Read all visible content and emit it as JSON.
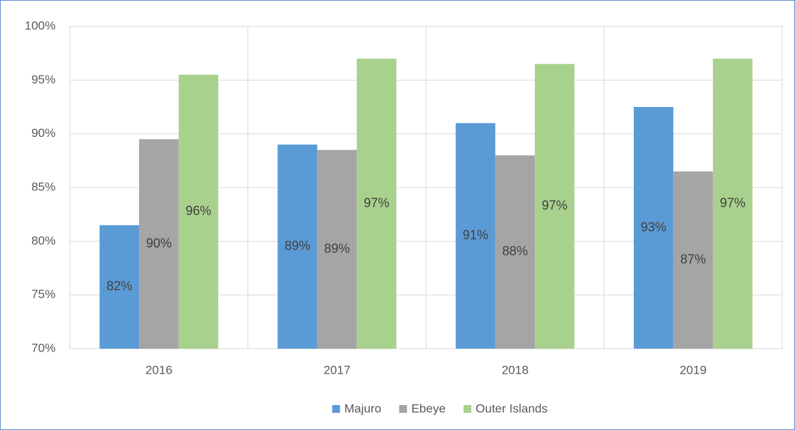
{
  "chart_data": {
    "type": "bar",
    "categories": [
      "2016",
      "2017",
      "2018",
      "2019"
    ],
    "series": [
      {
        "name": "Majuro",
        "color": "#5b9bd5",
        "values": [
          81.5,
          89,
          91,
          92.5
        ],
        "value_labels": [
          "82%",
          "89%",
          "91%",
          "93%"
        ]
      },
      {
        "name": "Ebeye",
        "color": "#a5a5a5",
        "values": [
          89.5,
          88.5,
          88,
          86.5
        ],
        "value_labels": [
          "90%",
          "89%",
          "88%",
          "87%"
        ]
      },
      {
        "name": "Outer Islands",
        "color": "#a9d18e",
        "values": [
          95.5,
          97,
          96.5,
          97
        ],
        "value_labels": [
          "96%",
          "97%",
          "97%",
          "97%"
        ]
      }
    ],
    "ylim": [
      70,
      100
    ],
    "yticks": [
      {
        "value": 70,
        "label": "70%"
      },
      {
        "value": 75,
        "label": "75%"
      },
      {
        "value": 80,
        "label": "80%"
      },
      {
        "value": 85,
        "label": "85%"
      },
      {
        "value": 90,
        "label": "90%"
      },
      {
        "value": 95,
        "label": "95%"
      },
      {
        "value": 100,
        "label": "100%"
      }
    ],
    "grid": true,
    "legend": "bottom"
  }
}
